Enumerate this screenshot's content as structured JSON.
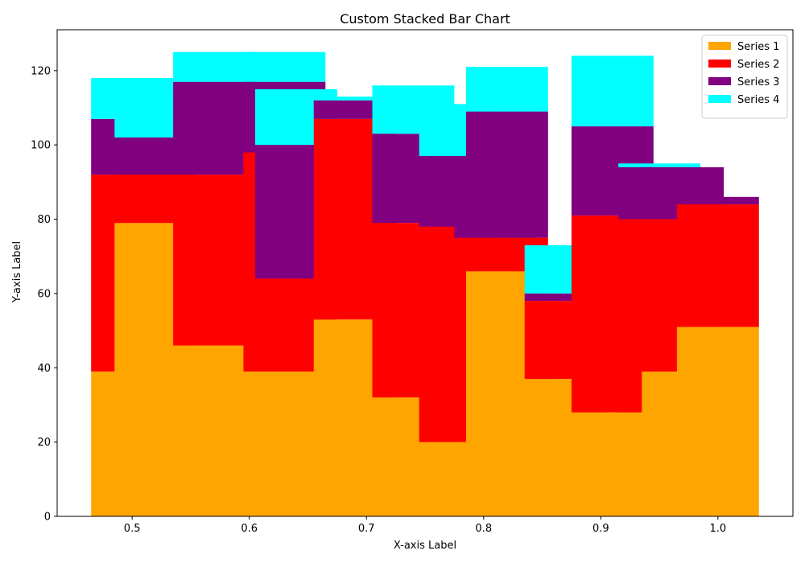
{
  "chart_data": {
    "type": "bar",
    "stacked": true,
    "title": "Custom Stacked Bar Chart",
    "xlabel": "X-axis Label",
    "ylabel": "Y-axis Label",
    "xlim": [
      0.436,
      1.064
    ],
    "ylim": [
      0,
      131
    ],
    "bar_width": 0.07,
    "x": [
      0.5,
      0.52,
      0.57,
      0.63,
      0.64,
      0.69,
      0.74,
      0.78,
      0.81,
      0.82,
      0.87,
      0.91,
      0.95,
      0.97,
      1.0
    ],
    "x_ticks": [
      0.5,
      0.6,
      0.7,
      0.8,
      0.9,
      1.0
    ],
    "x_tick_labels": [
      "0.5",
      "0.6",
      "0.7",
      "0.8",
      "0.9",
      "1.0"
    ],
    "y_ticks": [
      0,
      20,
      40,
      60,
      80,
      100,
      120
    ],
    "y_tick_labels": [
      "0",
      "20",
      "40",
      "60",
      "80",
      "100",
      "120"
    ],
    "grid": false,
    "legend_position": "top-right",
    "series": [
      {
        "name": "Series 1",
        "color": "#ffa500",
        "values": [
          39,
          79,
          46,
          39,
          39,
          53,
          32,
          20,
          20,
          66,
          37,
          28,
          28,
          39,
          51
        ]
      },
      {
        "name": "Series 2",
        "color": "#ff0000",
        "values": [
          53,
          13,
          46,
          59,
          25,
          54,
          47,
          58,
          55,
          9,
          21,
          53,
          52,
          41,
          33
        ]
      },
      {
        "name": "Series 3",
        "color": "#800080",
        "values": [
          15,
          10,
          25,
          19,
          36,
          5,
          24,
          19,
          22,
          34,
          2,
          24,
          14,
          14,
          2
        ]
      },
      {
        "name": "Series 4",
        "color": "#00ffff",
        "values": [
          11,
          13,
          8,
          8,
          15,
          1,
          13,
          14,
          12,
          12,
          13,
          19,
          1,
          0,
          0
        ]
      }
    ]
  }
}
